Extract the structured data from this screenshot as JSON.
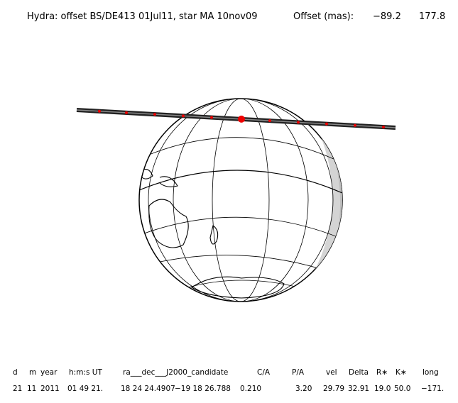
{
  "header": {
    "title": "Hydra: offset BS/DE413 01Jul11, star MA 10nov09",
    "offset_label": "Offset (mas):",
    "offset_values": [
      "−89.2",
      "177.8"
    ]
  },
  "table": {
    "columns": [
      "d",
      "m",
      "year",
      "h:m:s UT",
      "ra___dec___J2000_candidate",
      "C/A",
      "P/A",
      "vel",
      "Delta",
      "R∗",
      "K∗",
      "long"
    ],
    "rows": [
      [
        "21",
        "11",
        "2011",
        "01 49 21.",
        "18 24 24.4907",
        "−19 18 26.788",
        "0.210",
        "3.20",
        "29.79",
        "32.91",
        "19.0",
        "50.0",
        "−171."
      ]
    ]
  }
}
